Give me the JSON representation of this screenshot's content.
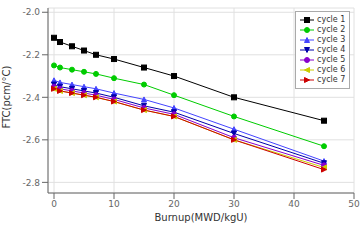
{
  "chart_data": {
    "type": "line",
    "title": "",
    "xlabel": "Burnup(MWD/kgU)",
    "ylabel": "FTC(pcm/°C)",
    "x": [
      0,
      1,
      3,
      5,
      7,
      10,
      15,
      20,
      30,
      45
    ],
    "series": [
      {
        "name": "cycle 1",
        "color": "#000000",
        "marker": "square",
        "values": [
          -2.12,
          -2.14,
          -2.16,
          -2.18,
          -2.2,
          -2.22,
          -2.26,
          -2.3,
          -2.4,
          -2.51
        ]
      },
      {
        "name": "cycle 2",
        "color": "#00cc00",
        "marker": "circle",
        "values": [
          -2.25,
          -2.26,
          -2.27,
          -2.28,
          -2.29,
          -2.31,
          -2.34,
          -2.39,
          -2.49,
          -2.63
        ]
      },
      {
        "name": "cycle 3",
        "color": "#4444ff",
        "marker": "triangle-up",
        "values": [
          -2.32,
          -2.33,
          -2.34,
          -2.35,
          -2.36,
          -2.38,
          -2.41,
          -2.45,
          -2.55,
          -2.7
        ]
      },
      {
        "name": "cycle 4",
        "color": "#0000aa",
        "marker": "triangle-down",
        "values": [
          -2.34,
          -2.35,
          -2.36,
          -2.37,
          -2.38,
          -2.4,
          -2.44,
          -2.47,
          -2.57,
          -2.71
        ]
      },
      {
        "name": "cycle 5",
        "color": "#8800cc",
        "marker": "circle",
        "values": [
          -2.35,
          -2.36,
          -2.37,
          -2.38,
          -2.39,
          -2.41,
          -2.45,
          -2.48,
          -2.59,
          -2.72
        ]
      },
      {
        "name": "cycle 6",
        "color": "#cccc00",
        "marker": "triangle-left",
        "values": [
          -2.36,
          -2.37,
          -2.38,
          -2.39,
          -2.4,
          -2.42,
          -2.46,
          -2.49,
          -2.6,
          -2.73
        ]
      },
      {
        "name": "cycle 7",
        "color": "#cc0000",
        "marker": "triangle-right",
        "values": [
          -2.36,
          -2.37,
          -2.38,
          -2.39,
          -2.4,
          -2.42,
          -2.46,
          -2.49,
          -2.6,
          -2.74
        ]
      }
    ],
    "xlim": [
      -1,
      50
    ],
    "xticks": [
      0,
      10,
      20,
      30,
      40,
      50
    ],
    "ylim": [
      -2.85,
      -1.98
    ],
    "yticks": [
      -2.8,
      -2.6,
      -2.4,
      -2.2,
      {
        "value": -2.0,
        "label": "-2.0"
      }
    ],
    "grid": true,
    "legend": "upper right"
  }
}
